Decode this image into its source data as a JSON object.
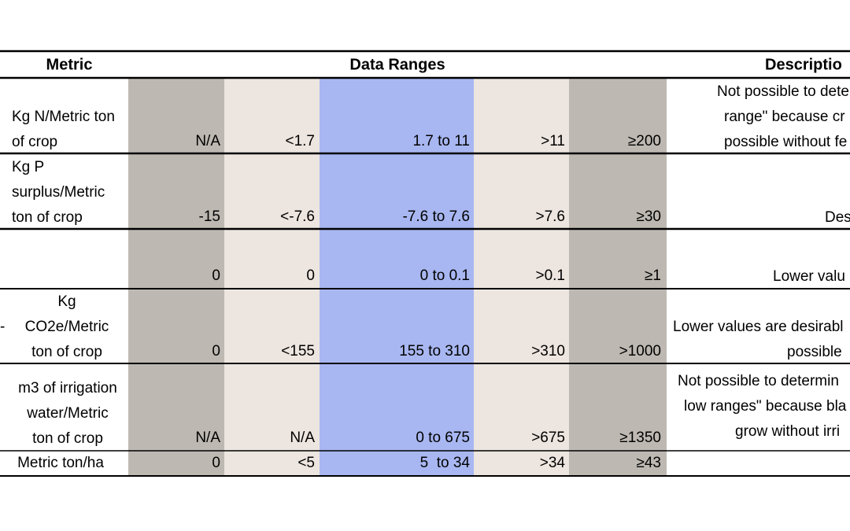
{
  "table": {
    "header": [
      "Metric",
      "Data Ranges",
      "Descriptio"
    ],
    "rows": [
      {
        "metric": [
          "Kg N/Metric ton",
          "of crop"
        ],
        "ranges": [
          "N/A",
          "<1.7",
          "1.7 to 11",
          ">11",
          "≥200"
        ],
        "description": [
          "Not possible to dete",
          "range\" because cr",
          "possible without fe"
        ]
      },
      {
        "metric": [
          "Kg P",
          "surplus/Metric",
          "ton of crop"
        ],
        "ranges": [
          "-15",
          "<-7.6",
          "-7.6 to 7.6",
          ">7.6",
          "≥30"
        ],
        "description": [
          "Des"
        ]
      },
      {
        "metric": [],
        "ranges": [
          "0",
          "0",
          "0 to 0.1",
          ">0.1",
          "≥1"
        ],
        "description": [
          "Lower valu"
        ]
      },
      {
        "marker": "-",
        "metric": [
          "Kg",
          "CO2e/Metric",
          "ton of crop"
        ],
        "ranges": [
          "0",
          "<155",
          "155 to 310",
          ">310",
          ">1000"
        ],
        "description": [
          "Lower values are desirabl",
          "possible"
        ]
      },
      {
        "metric": [
          "m3 of irrigation",
          "water/Metric",
          "ton of crop"
        ],
        "ranges": [
          "N/A",
          "N/A",
          "0 to 675",
          ">675",
          "≥1350"
        ],
        "description": [
          "Not possible to determin",
          "low ranges\" because bla",
          "grow without irri"
        ]
      },
      {
        "metric": [
          "Metric ton/ha"
        ],
        "ranges": [
          "0",
          "<5",
          "5  to 34",
          ">34",
          "≥43"
        ],
        "description": []
      }
    ]
  }
}
